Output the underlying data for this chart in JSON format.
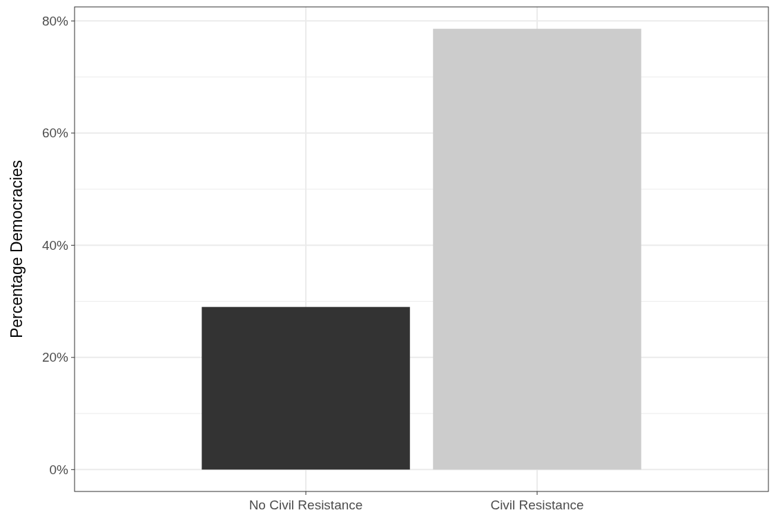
{
  "chart_data": {
    "type": "bar",
    "ylabel": "Percentage Democracies",
    "categories": [
      "No Civil Resistance",
      "Civil Resistance"
    ],
    "values": [
      29,
      78.6
    ],
    "colors": [
      "#333333",
      "#cccccc"
    ],
    "ylim": [
      -3.9,
      82.5
    ],
    "yticks": [
      {
        "value": 0,
        "label": "0%"
      },
      {
        "value": 10,
        "label": null
      },
      {
        "value": 20,
        "label": "20%"
      },
      {
        "value": 30,
        "label": null
      },
      {
        "value": 40,
        "label": "40%"
      },
      {
        "value": 50,
        "label": null
      },
      {
        "value": 60,
        "label": "60%"
      },
      {
        "value": 70,
        "label": null
      },
      {
        "value": 80,
        "label": "80%"
      }
    ],
    "grid": true
  }
}
